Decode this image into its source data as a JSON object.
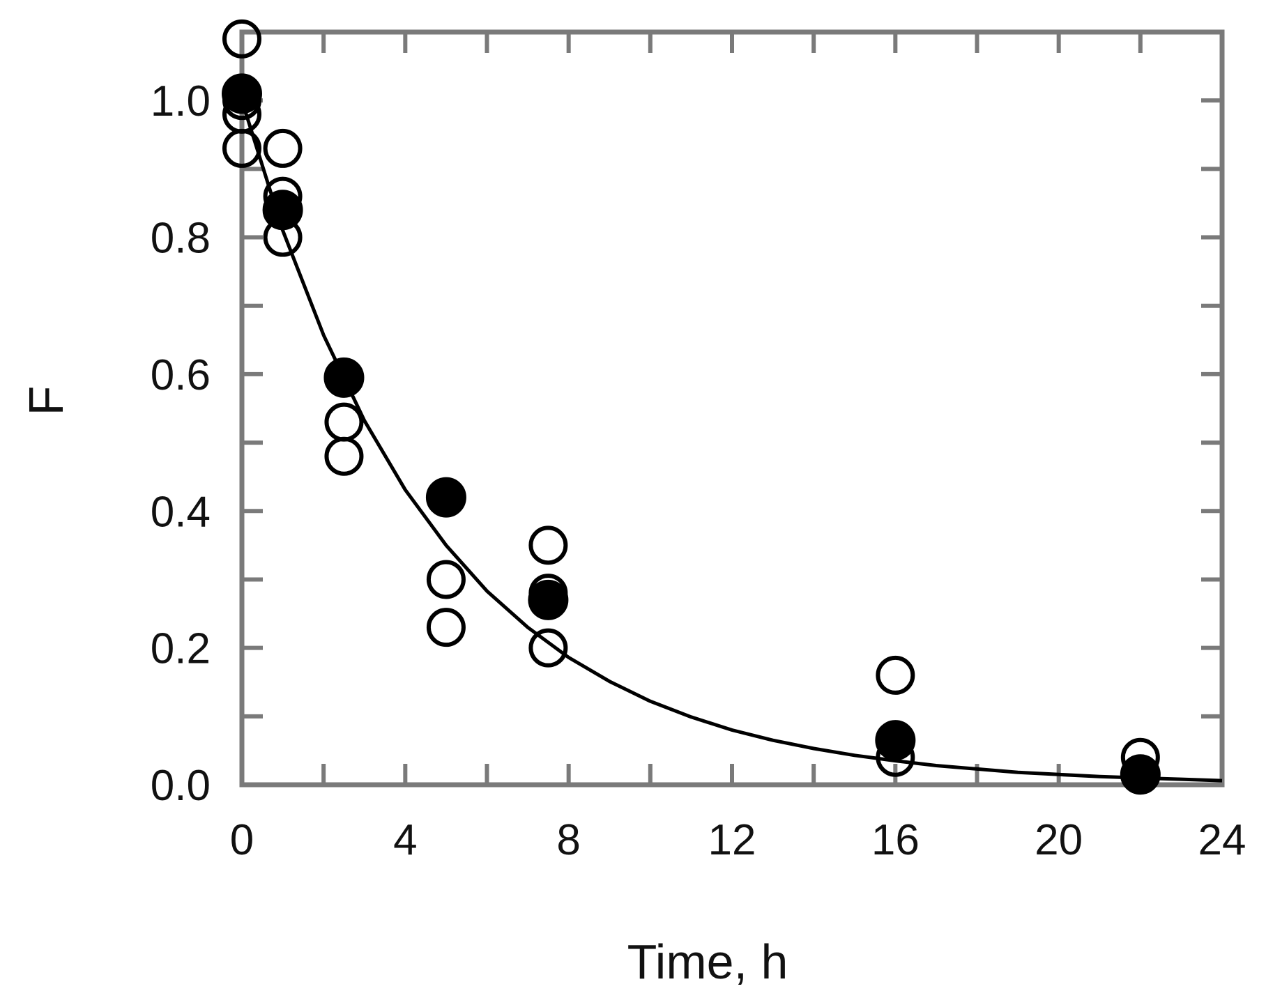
{
  "chart_data": {
    "type": "scatter",
    "xlabel": "Time, h",
    "ylabel": "F",
    "xlim": [
      0,
      24
    ],
    "ylim": [
      0,
      1.1
    ],
    "x_ticks": [
      "0",
      "4",
      "8",
      "12",
      "16",
      "20",
      "24"
    ],
    "y_ticks": [
      "0.0",
      "0.2",
      "0.4",
      "0.6",
      "0.8",
      "1.0"
    ],
    "x_tick_values": [
      0,
      4,
      8,
      12,
      16,
      20,
      24
    ],
    "y_tick_values": [
      0,
      0.2,
      0.4,
      0.6,
      0.8,
      1.0
    ],
    "grid": false,
    "series": [
      {
        "marker": "open-circle",
        "points": [
          [
            0,
            1.09
          ],
          [
            0,
            1.0
          ],
          [
            0,
            0.98
          ],
          [
            0,
            0.93
          ],
          [
            1,
            0.93
          ],
          [
            1,
            0.86
          ],
          [
            1,
            0.8
          ],
          [
            2.5,
            0.53
          ],
          [
            2.5,
            0.48
          ],
          [
            5,
            0.3
          ],
          [
            5,
            0.23
          ],
          [
            7.5,
            0.35
          ],
          [
            7.5,
            0.28
          ],
          [
            7.5,
            0.2
          ],
          [
            16,
            0.16
          ],
          [
            16,
            0.04
          ],
          [
            22,
            0.04
          ]
        ]
      },
      {
        "marker": "filled-circle",
        "points": [
          [
            0,
            1.01
          ],
          [
            1,
            0.84
          ],
          [
            2.5,
            0.595
          ],
          [
            5,
            0.42
          ],
          [
            7.5,
            0.27
          ],
          [
            16,
            0.065
          ],
          [
            22,
            0.015
          ]
        ]
      },
      {
        "marker": "line",
        "curve": "exponential-decay",
        "points": [
          [
            0,
            1.0
          ],
          [
            1,
            0.81
          ],
          [
            2,
            0.657
          ],
          [
            3,
            0.532
          ],
          [
            4,
            0.431
          ],
          [
            5,
            0.35
          ],
          [
            6,
            0.283
          ],
          [
            7,
            0.23
          ],
          [
            8,
            0.186
          ],
          [
            9,
            0.151
          ],
          [
            10,
            0.122
          ],
          [
            11,
            0.099
          ],
          [
            12,
            0.08
          ],
          [
            13,
            0.065
          ],
          [
            14,
            0.053
          ],
          [
            15,
            0.043
          ],
          [
            16,
            0.035
          ],
          [
            17,
            0.028
          ],
          [
            18,
            0.023
          ],
          [
            19,
            0.018
          ],
          [
            20,
            0.015
          ],
          [
            21,
            0.012
          ],
          [
            22,
            0.01
          ],
          [
            23,
            0.008
          ],
          [
            24,
            0.006
          ]
        ]
      }
    ]
  },
  "colors": {
    "axis": "#7a7a7a",
    "marker": "#000000",
    "text": "#111111"
  }
}
